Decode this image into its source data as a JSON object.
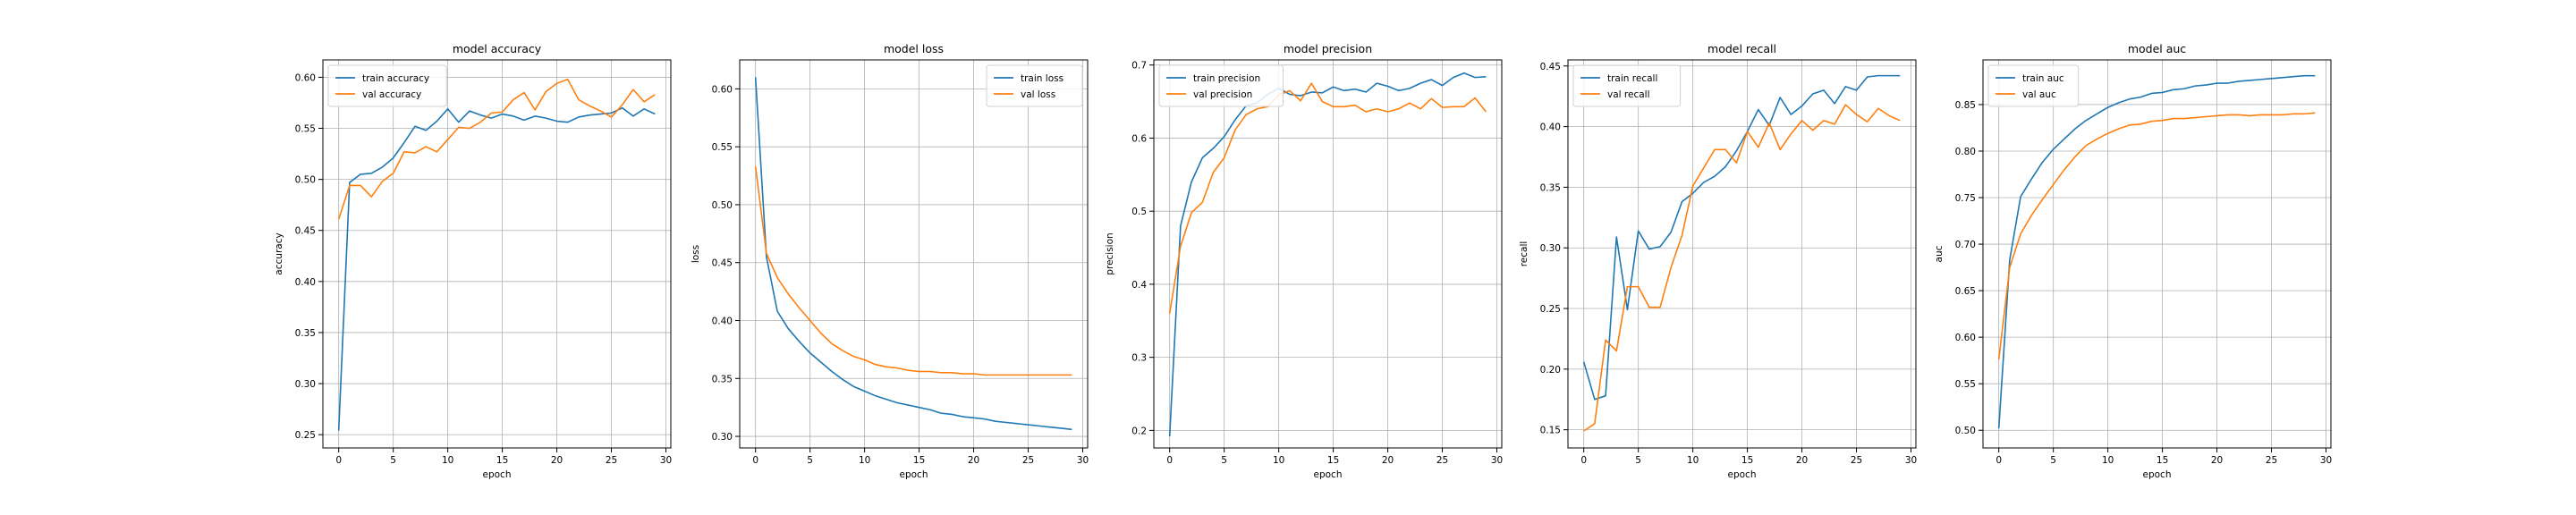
{
  "colors": {
    "train": "#1f77b4",
    "val": "#ff7f0e",
    "grid": "#b0b0b0"
  },
  "chart_data": [
    {
      "type": "line",
      "title": "model accuracy",
      "xlabel": "epoch",
      "ylabel": "accuracy",
      "xlim": [
        -1.45,
        30.45
      ],
      "ylim": [
        0.237,
        0.617
      ],
      "xticks": [
        0,
        5,
        10,
        15,
        20,
        25,
        30
      ],
      "yticks": [
        0.25,
        0.3,
        0.35,
        0.4,
        0.45,
        0.5,
        0.55,
        0.6
      ],
      "ytick_labels": [
        "0.25",
        "0.30",
        "0.35",
        "0.40",
        "0.45",
        "0.50",
        "0.55",
        "0.60"
      ],
      "legend": "upper left",
      "grid": true,
      "series": [
        {
          "name": "train accuracy",
          "color": "#1f77b4",
          "x": [
            0,
            1,
            2,
            3,
            4,
            5,
            6,
            7,
            8,
            9,
            10,
            11,
            12,
            13,
            14,
            15,
            16,
            17,
            18,
            19,
            20,
            21,
            22,
            23,
            24,
            25,
            26,
            27,
            28,
            29
          ],
          "values": [
            0.254,
            0.497,
            0.505,
            0.506,
            0.512,
            0.521,
            0.536,
            0.552,
            0.548,
            0.557,
            0.569,
            0.556,
            0.567,
            0.563,
            0.56,
            0.564,
            0.562,
            0.558,
            0.562,
            0.56,
            0.557,
            0.556,
            0.561,
            0.563,
            0.564,
            0.565,
            0.57,
            0.562,
            0.569,
            0.564
          ]
        },
        {
          "name": "val accuracy",
          "color": "#ff7f0e",
          "x": [
            0,
            1,
            2,
            3,
            4,
            5,
            6,
            7,
            8,
            9,
            10,
            11,
            12,
            13,
            14,
            15,
            16,
            17,
            18,
            19,
            20,
            21,
            22,
            23,
            24,
            25,
            26,
            27,
            28,
            29
          ],
          "values": [
            0.461,
            0.494,
            0.494,
            0.483,
            0.498,
            0.506,
            0.527,
            0.526,
            0.532,
            0.527,
            0.539,
            0.551,
            0.55,
            0.556,
            0.565,
            0.566,
            0.578,
            0.585,
            0.568,
            0.586,
            0.594,
            0.598,
            0.578,
            0.572,
            0.567,
            0.561,
            0.573,
            0.588,
            0.576,
            0.583
          ]
        }
      ]
    },
    {
      "type": "line",
      "title": "model loss",
      "xlabel": "epoch",
      "ylabel": "loss",
      "xlim": [
        -1.45,
        30.45
      ],
      "ylim": [
        0.29,
        0.625
      ],
      "xticks": [
        0,
        5,
        10,
        15,
        20,
        25,
        30
      ],
      "yticks": [
        0.3,
        0.35,
        0.4,
        0.45,
        0.5,
        0.55,
        0.6
      ],
      "ytick_labels": [
        "0.30",
        "0.35",
        "0.40",
        "0.45",
        "0.50",
        "0.55",
        "0.60"
      ],
      "legend": "upper right",
      "grid": true,
      "series": [
        {
          "name": "train loss",
          "color": "#1f77b4",
          "x": [
            0,
            1,
            2,
            3,
            4,
            5,
            6,
            7,
            8,
            9,
            10,
            11,
            12,
            13,
            14,
            15,
            16,
            17,
            18,
            19,
            20,
            21,
            22,
            23,
            24,
            25,
            26,
            27,
            28,
            29
          ],
          "values": [
            0.61,
            0.455,
            0.408,
            0.393,
            0.382,
            0.372,
            0.364,
            0.356,
            0.349,
            0.343,
            0.339,
            0.335,
            0.332,
            0.329,
            0.327,
            0.325,
            0.323,
            0.32,
            0.319,
            0.317,
            0.316,
            0.315,
            0.313,
            0.312,
            0.311,
            0.31,
            0.309,
            0.308,
            0.307,
            0.306
          ]
        },
        {
          "name": "val loss",
          "color": "#ff7f0e",
          "x": [
            0,
            1,
            2,
            3,
            4,
            5,
            6,
            7,
            8,
            9,
            10,
            11,
            12,
            13,
            14,
            15,
            16,
            17,
            18,
            19,
            20,
            21,
            22,
            23,
            24,
            25,
            26,
            27,
            28,
            29
          ],
          "values": [
            0.533,
            0.458,
            0.437,
            0.423,
            0.411,
            0.4,
            0.389,
            0.38,
            0.374,
            0.369,
            0.366,
            0.362,
            0.36,
            0.359,
            0.357,
            0.356,
            0.356,
            0.355,
            0.355,
            0.354,
            0.354,
            0.353,
            0.353,
            0.353,
            0.353,
            0.353,
            0.353,
            0.353,
            0.353,
            0.353
          ]
        }
      ]
    },
    {
      "type": "line",
      "title": "model precision",
      "xlabel": "epoch",
      "ylabel": "precision",
      "xlim": [
        -1.45,
        30.45
      ],
      "ylim": [
        0.176,
        0.707
      ],
      "xticks": [
        0,
        5,
        10,
        15,
        20,
        25,
        30
      ],
      "yticks": [
        0.2,
        0.3,
        0.4,
        0.5,
        0.6,
        0.7
      ],
      "ytick_labels": [
        "0.2",
        "0.3",
        "0.4",
        "0.5",
        "0.6",
        "0.7"
      ],
      "legend": "upper left",
      "grid": true,
      "series": [
        {
          "name": "train precision",
          "color": "#1f77b4",
          "x": [
            0,
            1,
            2,
            3,
            4,
            5,
            6,
            7,
            8,
            9,
            10,
            11,
            12,
            13,
            14,
            15,
            16,
            17,
            18,
            19,
            20,
            21,
            22,
            23,
            24,
            25,
            26,
            27,
            28,
            29
          ],
          "values": [
            0.192,
            0.48,
            0.54,
            0.573,
            0.586,
            0.602,
            0.625,
            0.644,
            0.648,
            0.66,
            0.668,
            0.66,
            0.658,
            0.663,
            0.662,
            0.67,
            0.665,
            0.667,
            0.663,
            0.675,
            0.671,
            0.665,
            0.668,
            0.675,
            0.68,
            0.672,
            0.683,
            0.689,
            0.683,
            0.684
          ]
        },
        {
          "name": "val precision",
          "color": "#ff7f0e",
          "x": [
            0,
            1,
            2,
            3,
            4,
            5,
            6,
            7,
            8,
            9,
            10,
            11,
            12,
            13,
            14,
            15,
            16,
            17,
            18,
            19,
            20,
            21,
            22,
            23,
            24,
            25,
            26,
            27,
            28,
            29
          ],
          "values": [
            0.36,
            0.452,
            0.498,
            0.512,
            0.553,
            0.573,
            0.611,
            0.632,
            0.64,
            0.643,
            0.659,
            0.665,
            0.651,
            0.675,
            0.65,
            0.643,
            0.643,
            0.645,
            0.636,
            0.64,
            0.636,
            0.64,
            0.648,
            0.64,
            0.654,
            0.642,
            0.643,
            0.643,
            0.655,
            0.636
          ]
        }
      ]
    },
    {
      "type": "line",
      "title": "model recall",
      "xlabel": "epoch",
      "ylabel": "recall",
      "xlim": [
        -1.45,
        30.45
      ],
      "ylim": [
        0.135,
        0.455
      ],
      "xticks": [
        0,
        5,
        10,
        15,
        20,
        25,
        30
      ],
      "yticks": [
        0.15,
        0.2,
        0.25,
        0.3,
        0.35,
        0.4,
        0.45
      ],
      "ytick_labels": [
        "0.15",
        "0.20",
        "0.25",
        "0.30",
        "0.35",
        "0.40",
        "0.45"
      ],
      "legend": "upper left",
      "grid": true,
      "series": [
        {
          "name": "train recall",
          "color": "#1f77b4",
          "x": [
            0,
            1,
            2,
            3,
            4,
            5,
            6,
            7,
            8,
            9,
            10,
            11,
            12,
            13,
            14,
            15,
            16,
            17,
            18,
            19,
            20,
            21,
            22,
            23,
            24,
            25,
            26,
            27,
            28,
            29
          ],
          "values": [
            0.206,
            0.175,
            0.178,
            0.309,
            0.249,
            0.314,
            0.299,
            0.301,
            0.313,
            0.338,
            0.345,
            0.354,
            0.359,
            0.367,
            0.38,
            0.396,
            0.414,
            0.401,
            0.424,
            0.41,
            0.417,
            0.427,
            0.43,
            0.419,
            0.433,
            0.43,
            0.441,
            0.442,
            0.442,
            0.442
          ]
        },
        {
          "name": "val recall",
          "color": "#ff7f0e",
          "x": [
            0,
            1,
            2,
            3,
            4,
            5,
            6,
            7,
            8,
            9,
            10,
            11,
            12,
            13,
            14,
            15,
            16,
            17,
            18,
            19,
            20,
            21,
            22,
            23,
            24,
            25,
            26,
            27,
            28,
            29
          ],
          "values": [
            0.149,
            0.155,
            0.224,
            0.215,
            0.268,
            0.268,
            0.251,
            0.251,
            0.284,
            0.31,
            0.351,
            0.366,
            0.381,
            0.381,
            0.37,
            0.396,
            0.383,
            0.403,
            0.381,
            0.394,
            0.405,
            0.397,
            0.405,
            0.402,
            0.418,
            0.41,
            0.404,
            0.415,
            0.409,
            0.405
          ]
        }
      ]
    },
    {
      "type": "line",
      "title": "model auc",
      "xlabel": "epoch",
      "ylabel": "auc",
      "xlim": [
        -1.45,
        30.45
      ],
      "ylim": [
        0.481,
        0.898
      ],
      "xticks": [
        0,
        5,
        10,
        15,
        20,
        25,
        30
      ],
      "yticks": [
        0.5,
        0.55,
        0.6,
        0.65,
        0.7,
        0.75,
        0.8,
        0.85
      ],
      "ytick_labels": [
        "0.50",
        "0.55",
        "0.60",
        "0.65",
        "0.70",
        "0.75",
        "0.80",
        "0.85"
      ],
      "legend": "upper left",
      "grid": true,
      "series": [
        {
          "name": "train auc",
          "color": "#1f77b4",
          "x": [
            0,
            1,
            2,
            3,
            4,
            5,
            6,
            7,
            8,
            9,
            10,
            11,
            12,
            13,
            14,
            15,
            16,
            17,
            18,
            19,
            20,
            21,
            22,
            23,
            24,
            25,
            26,
            27,
            28,
            29
          ],
          "values": [
            0.502,
            0.683,
            0.751,
            0.77,
            0.788,
            0.802,
            0.813,
            0.824,
            0.833,
            0.84,
            0.847,
            0.852,
            0.856,
            0.858,
            0.862,
            0.863,
            0.866,
            0.867,
            0.87,
            0.871,
            0.873,
            0.873,
            0.875,
            0.876,
            0.877,
            0.878,
            0.879,
            0.88,
            0.881,
            0.881
          ]
        },
        {
          "name": "val auc",
          "color": "#ff7f0e",
          "x": [
            0,
            1,
            2,
            3,
            4,
            5,
            6,
            7,
            8,
            9,
            10,
            11,
            12,
            13,
            14,
            15,
            16,
            17,
            18,
            19,
            20,
            21,
            22,
            23,
            24,
            25,
            26,
            27,
            28,
            29
          ],
          "values": [
            0.576,
            0.675,
            0.711,
            0.731,
            0.748,
            0.764,
            0.78,
            0.794,
            0.806,
            0.813,
            0.819,
            0.824,
            0.828,
            0.829,
            0.832,
            0.833,
            0.835,
            0.835,
            0.836,
            0.837,
            0.838,
            0.839,
            0.839,
            0.838,
            0.839,
            0.839,
            0.839,
            0.84,
            0.84,
            0.841
          ]
        }
      ]
    }
  ]
}
